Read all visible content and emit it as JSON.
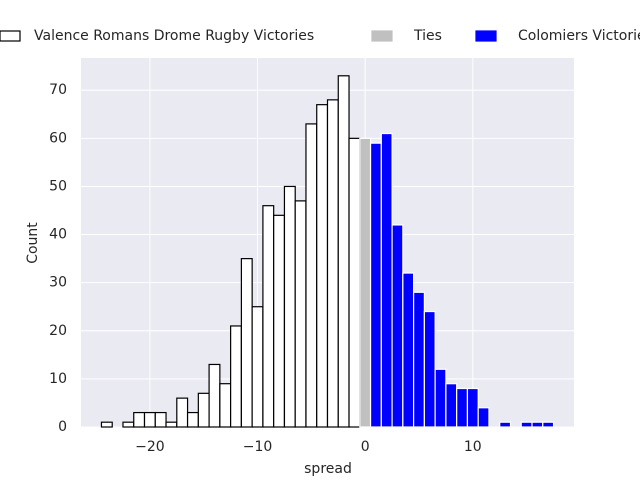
{
  "chart_data": {
    "type": "histogram",
    "x_label": "spread",
    "y_label": "Count",
    "xlim": [
      -26.4,
      19.4
    ],
    "ylim": [
      0,
      76.7
    ],
    "xticks": [
      {
        "value": -20,
        "label": "−20"
      },
      {
        "value": -10,
        "label": "−10"
      },
      0,
      10
    ],
    "yticks": [
      0,
      10,
      20,
      30,
      40,
      50,
      60,
      70
    ],
    "grid": true,
    "legend": "top",
    "series": [
      {
        "name": "Valence Romans Drome Rugby Victories",
        "color": "#ffffff",
        "edgecolor": "#000000",
        "bins": [
          -24.5,
          -23.5,
          -22.5,
          -21.5,
          -20.5,
          -19.5,
          -18.5,
          -17.5,
          -16.5,
          -15.5,
          -14.5,
          -13.5,
          -12.5,
          -11.5,
          -10.5,
          -9.5,
          -8.5,
          -7.5,
          -6.5,
          -5.5,
          -4.5,
          -3.5,
          -2.5,
          -1.5,
          -0.5
        ],
        "values": [
          1,
          0,
          1,
          3,
          3,
          3,
          1,
          6,
          3,
          7,
          13,
          9,
          21,
          35,
          25,
          46,
          44,
          50,
          47,
          63,
          67,
          68,
          73,
          60
        ]
      },
      {
        "name": "Ties",
        "color": "#c0c0c0",
        "edgecolor": "#ffffff",
        "bins": [
          -0.5,
          0.5
        ],
        "values": [
          60
        ]
      },
      {
        "name": "Colomiers Victories",
        "color": "#0000ff",
        "edgecolor": "#ffffff",
        "bins": [
          0.5,
          1.5,
          2.5,
          3.5,
          4.5,
          5.5,
          6.5,
          7.5,
          8.5,
          9.5,
          10.5,
          11.5,
          12.5,
          13.5,
          14.5,
          15.5,
          16.5,
          17.5
        ],
        "values": [
          59,
          61,
          42,
          32,
          28,
          24,
          12,
          9,
          8,
          8,
          4,
          0,
          1,
          0,
          1,
          1,
          1
        ]
      }
    ]
  }
}
